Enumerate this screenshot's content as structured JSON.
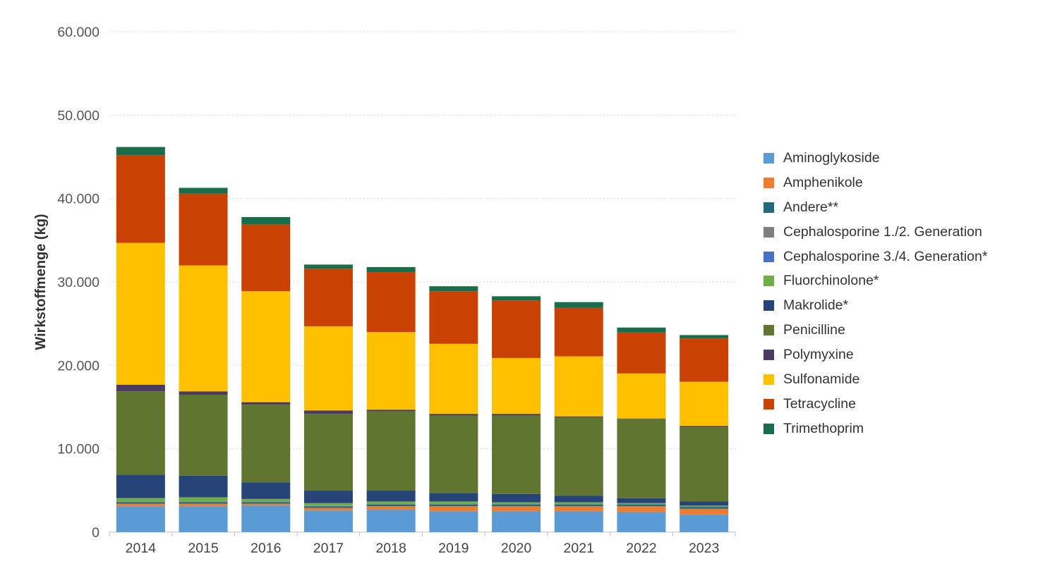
{
  "chart_data": {
    "type": "bar",
    "stacked": true,
    "ylabel": "Wirkstoffmenge (kg)",
    "xlabel": "",
    "ylim": [
      0,
      60000
    ],
    "yticks": [
      {
        "value": 0,
        "label": "0"
      },
      {
        "value": 10000,
        "label": "10.000"
      },
      {
        "value": 20000,
        "label": "20.000"
      },
      {
        "value": 30000,
        "label": "30.000"
      },
      {
        "value": 40000,
        "label": "40.000"
      },
      {
        "value": 50000,
        "label": "50.000"
      },
      {
        "value": 60000,
        "label": "60.000"
      }
    ],
    "grid": true,
    "legend_position": "right",
    "categories": [
      "2014",
      "2015",
      "2016",
      "2017",
      "2018",
      "2019",
      "2020",
      "2021",
      "2022",
      "2023"
    ],
    "series": [
      {
        "name": "Aminoglykoside",
        "color": "#5b9bd5",
        "values": [
          3100,
          3100,
          3200,
          2600,
          2700,
          2500,
          2500,
          2500,
          2400,
          2100
        ]
      },
      {
        "name": "Amphenikole",
        "color": "#ed7d31",
        "values": [
          300,
          300,
          200,
          300,
          400,
          600,
          600,
          600,
          700,
          700
        ]
      },
      {
        "name": "Andere**",
        "color": "#226a7a",
        "values": [
          200,
          200,
          200,
          200,
          200,
          200,
          200,
          200,
          200,
          200
        ]
      },
      {
        "name": "Cephalosporine 1./2. Generation",
        "color": "#7f7f7f",
        "values": [
          50,
          50,
          50,
          50,
          50,
          50,
          50,
          50,
          50,
          50
        ]
      },
      {
        "name": "Cephalosporine 3./4. Generation*",
        "color": "#4472c4",
        "values": [
          30,
          30,
          30,
          30,
          30,
          30,
          30,
          30,
          30,
          30
        ]
      },
      {
        "name": "Fluorchinolone*",
        "color": "#70ad47",
        "values": [
          400,
          500,
          300,
          300,
          300,
          300,
          200,
          200,
          100,
          100
        ]
      },
      {
        "name": "Makrolide*",
        "color": "#264478",
        "values": [
          2800,
          2600,
          2000,
          1500,
          1300,
          1000,
          1000,
          800,
          600,
          500
        ]
      },
      {
        "name": "Penicilline",
        "color": "#5f7530",
        "values": [
          10000,
          9700,
          9300,
          9200,
          9500,
          9300,
          9400,
          9400,
          9500,
          8900
        ]
      },
      {
        "name": "Polymyxine",
        "color": "#4b3a62",
        "values": [
          800,
          400,
          300,
          400,
          200,
          200,
          200,
          100,
          50,
          150
        ]
      },
      {
        "name": "Sulfonamide",
        "color": "#ffc000",
        "values": [
          17000,
          15100,
          13300,
          10100,
          9300,
          8400,
          6700,
          7200,
          5400,
          5300
        ]
      },
      {
        "name": "Tetracycline",
        "color": "#c94203",
        "values": [
          10500,
          8600,
          8000,
          6900,
          7200,
          6300,
          6900,
          5800,
          4900,
          5200
        ]
      },
      {
        "name": "Trimethoprim",
        "color": "#1a6d4a",
        "values": [
          1000,
          700,
          900,
          500,
          600,
          600,
          500,
          700,
          600,
          400
        ]
      }
    ]
  }
}
